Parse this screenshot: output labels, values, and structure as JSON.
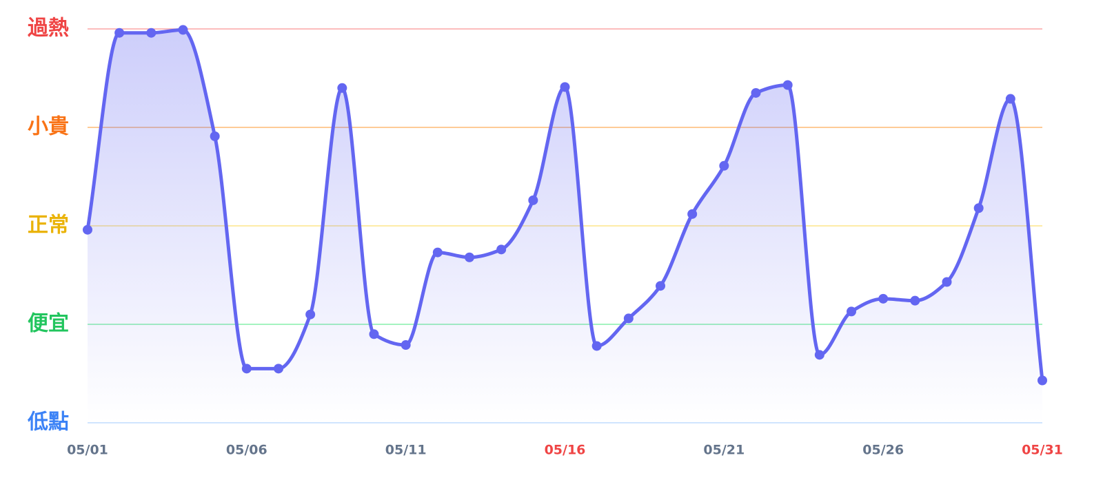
{
  "chart_data": {
    "type": "line",
    "categories": [
      "05/01",
      null,
      null,
      null,
      null,
      "05/06",
      null,
      null,
      null,
      null,
      "05/11",
      null,
      null,
      null,
      null,
      "05/16",
      null,
      null,
      null,
      null,
      "05/21",
      null,
      null,
      null,
      null,
      "05/26",
      null,
      null,
      null,
      null,
      "05/31"
    ],
    "category_colors": [
      "#64748b",
      null,
      null,
      null,
      null,
      "#64748b",
      null,
      null,
      null,
      null,
      "#64748b",
      null,
      null,
      null,
      null,
      "#ef4444",
      null,
      null,
      null,
      null,
      "#64748b",
      null,
      null,
      null,
      null,
      "#64748b",
      null,
      null,
      null,
      null,
      "#ef4444"
    ],
    "series": [
      {
        "color": "#6366f1",
        "values": [
          1.96,
          3.96,
          3.96,
          3.99,
          2.91,
          0.55,
          0.55,
          1.1,
          3.4,
          0.9,
          0.79,
          1.73,
          1.68,
          1.76,
          2.26,
          3.41,
          0.78,
          1.06,
          1.39,
          2.12,
          2.61,
          3.35,
          3.43,
          0.69,
          1.13,
          1.26,
          1.24,
          1.43,
          2.18,
          3.29,
          0.43
        ]
      }
    ],
    "ylim": [
      0,
      4
    ],
    "yticks": [
      {
        "value": 0,
        "label": "低點"
      },
      {
        "value": 1,
        "label": "便宜"
      },
      {
        "value": 2,
        "label": "正常"
      },
      {
        "value": 3,
        "label": "小貴"
      },
      {
        "value": 4,
        "label": "過熱"
      }
    ],
    "ytick_colors": [
      "#3b82f6",
      "#22c55e",
      "#eab308",
      "#f97316",
      "#ef4444"
    ],
    "grid_colors": [
      "#bfdbfe",
      "#86efac",
      "#fde68a",
      "#fdba74",
      "#fca5a5"
    ],
    "grid": true
  }
}
